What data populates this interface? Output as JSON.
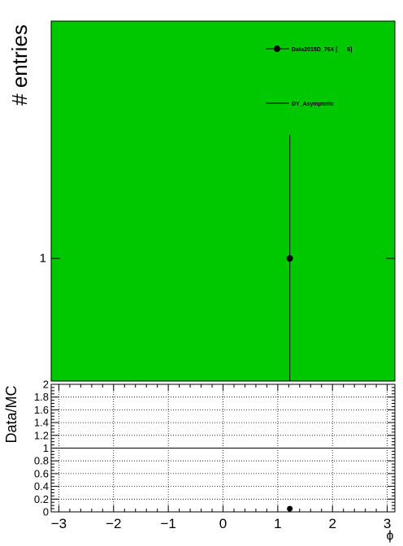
{
  "chart_data": [
    {
      "type": "scatter",
      "panel": "main",
      "ylabel": "# entries",
      "ytick_labels": [
        "1"
      ],
      "background_color": "#00c800",
      "legend_placement": "top-right",
      "legend": [
        {
          "label": "Data2015D_76X [      5]",
          "style": "marker-with-errorbar"
        },
        {
          "label": "DY_Asymptotic",
          "style": "line"
        }
      ],
      "series": [
        {
          "name": "Data2015D_76X [      5]",
          "points": [
            {
              "x": 1.22,
              "y": 1.0
            }
          ]
        }
      ]
    },
    {
      "type": "scatter",
      "panel": "ratio",
      "ylabel": "Data/MC",
      "xlabel": "ϕ",
      "xlim": [
        -3.14,
        3.14
      ],
      "ylim": [
        0,
        2
      ],
      "grid": true,
      "xticks": [
        -3,
        -2,
        -1,
        0,
        1,
        2,
        3
      ],
      "xtick_labels": [
        "−3",
        "−2",
        "−1",
        "0",
        "1",
        "2",
        "3"
      ],
      "yticks": [
        0,
        0.2,
        0.4,
        0.6,
        0.8,
        1,
        1.2,
        1.4,
        1.6,
        1.8,
        2
      ],
      "ytick_labels": [
        "0",
        "0.2",
        "0.4",
        "0.6",
        "0.8",
        "1",
        "1.2",
        "1.4",
        "1.6",
        "1.8",
        "2"
      ],
      "reference_line": 1,
      "series": [
        {
          "points": [
            {
              "x": 1.22,
              "y": 0.05
            }
          ]
        }
      ]
    }
  ]
}
